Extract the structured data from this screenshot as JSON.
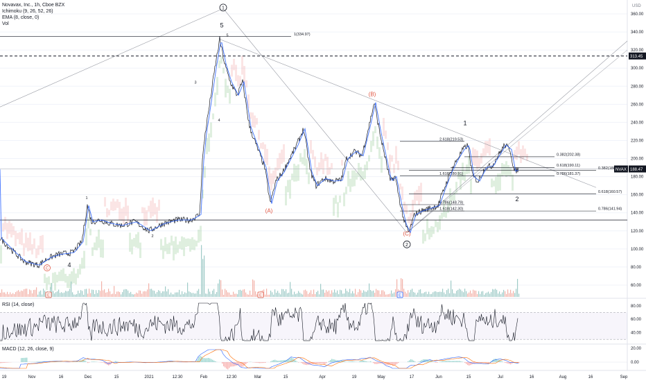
{
  "header": {
    "symbol": "Novavax, Inc., 1h, Cboe BZX",
    "indicators": [
      "Ichimoku (9, 26, 52, 26)",
      "EMA (8, close, 0)",
      "Vol"
    ],
    "currency": "USD",
    "symbol_badge": "NVAX",
    "last_price": "188.47",
    "level_price": "313.45"
  },
  "panes": {
    "rsi_label": "RSI (14, close)",
    "macd_label": "MACD (12, 26, close, 9)"
  },
  "colors": {
    "price_line": "#131722",
    "ema": "#2962ff",
    "cloud_bull": "#8bc48b",
    "cloud_bear": "#f2a0a0",
    "volume_up": "#9ecbc7",
    "volume_down": "#f3b1a8",
    "wave_red": "#e0533f",
    "trend_gray": "#9598a1"
  },
  "chart_data": {
    "type": "line",
    "x_axis_ticks": [
      "19",
      "Nov",
      "16",
      "Dec",
      "15",
      "2021",
      "12:30",
      "Feb",
      "12:30",
      "Mar",
      "15",
      "Apr",
      "19",
      "May",
      "17",
      "Jun",
      "15",
      "Jul",
      "16",
      "Aug",
      "16",
      "Sep"
    ],
    "y_axis_ticks": [
      "360.00",
      "340.00",
      "320.00",
      "300.00",
      "280.00",
      "260.00",
      "240.00",
      "220.00",
      "200.00",
      "180.00",
      "160.00",
      "140.00",
      "120.00",
      "100.00",
      "80.00",
      "60.00"
    ],
    "ylim": [
      50,
      370
    ],
    "rsi_ticks": [
      "80.00",
      "60.00",
      "40.00"
    ],
    "rsi_range": [
      30,
      70
    ],
    "macd_ticks": [
      "20.00",
      "0.00"
    ],
    "price_anchors": [
      {
        "x": 0,
        "y": 112
      },
      {
        "x": 18,
        "y": 98
      },
      {
        "x": 35,
        "y": 86
      },
      {
        "x": 55,
        "y": 82
      },
      {
        "x": 70,
        "y": 90
      },
      {
        "x": 85,
        "y": 94
      },
      {
        "x": 105,
        "y": 96
      },
      {
        "x": 118,
        "y": 108
      },
      {
        "x": 126,
        "y": 148
      },
      {
        "x": 132,
        "y": 130
      },
      {
        "x": 145,
        "y": 132
      },
      {
        "x": 160,
        "y": 128
      },
      {
        "x": 175,
        "y": 126
      },
      {
        "x": 195,
        "y": 130
      },
      {
        "x": 215,
        "y": 120
      },
      {
        "x": 235,
        "y": 128
      },
      {
        "x": 255,
        "y": 132
      },
      {
        "x": 275,
        "y": 132
      },
      {
        "x": 288,
        "y": 138
      },
      {
        "x": 292,
        "y": 198
      },
      {
        "x": 296,
        "y": 228
      },
      {
        "x": 302,
        "y": 258
      },
      {
        "x": 310,
        "y": 300
      },
      {
        "x": 317,
        "y": 332
      },
      {
        "x": 324,
        "y": 305
      },
      {
        "x": 332,
        "y": 285
      },
      {
        "x": 342,
        "y": 270
      },
      {
        "x": 350,
        "y": 285
      },
      {
        "x": 360,
        "y": 235
      },
      {
        "x": 372,
        "y": 210
      },
      {
        "x": 382,
        "y": 190
      },
      {
        "x": 390,
        "y": 150
      },
      {
        "x": 398,
        "y": 175
      },
      {
        "x": 408,
        "y": 185
      },
      {
        "x": 418,
        "y": 200
      },
      {
        "x": 428,
        "y": 215
      },
      {
        "x": 438,
        "y": 233
      },
      {
        "x": 448,
        "y": 185
      },
      {
        "x": 456,
        "y": 170
      },
      {
        "x": 468,
        "y": 178
      },
      {
        "x": 480,
        "y": 175
      },
      {
        "x": 492,
        "y": 176
      },
      {
        "x": 500,
        "y": 200
      },
      {
        "x": 512,
        "y": 208
      },
      {
        "x": 522,
        "y": 203
      },
      {
        "x": 532,
        "y": 235
      },
      {
        "x": 540,
        "y": 262
      },
      {
        "x": 548,
        "y": 228
      },
      {
        "x": 556,
        "y": 200
      },
      {
        "x": 563,
        "y": 175
      },
      {
        "x": 570,
        "y": 180
      },
      {
        "x": 578,
        "y": 148
      },
      {
        "x": 584,
        "y": 128
      },
      {
        "x": 590,
        "y": 118
      },
      {
        "x": 598,
        "y": 138
      },
      {
        "x": 608,
        "y": 142
      },
      {
        "x": 620,
        "y": 145
      },
      {
        "x": 632,
        "y": 148
      },
      {
        "x": 640,
        "y": 165
      },
      {
        "x": 650,
        "y": 185
      },
      {
        "x": 660,
        "y": 200
      },
      {
        "x": 668,
        "y": 210
      },
      {
        "x": 675,
        "y": 215
      },
      {
        "x": 682,
        "y": 180
      },
      {
        "x": 690,
        "y": 175
      },
      {
        "x": 700,
        "y": 190
      },
      {
        "x": 710,
        "y": 192
      },
      {
        "x": 720,
        "y": 205
      },
      {
        "x": 728,
        "y": 215
      },
      {
        "x": 736,
        "y": 210
      },
      {
        "x": 742,
        "y": 186
      },
      {
        "x": 748,
        "y": 188
      }
    ],
    "annotations": [
      {
        "text": "1",
        "x": 322,
        "y": 367,
        "style": "circle"
      },
      {
        "text": "2",
        "x": 587,
        "y": 105,
        "style": "circle"
      },
      {
        "text": "5",
        "x": 320,
        "y": 345,
        "style": "plain"
      },
      {
        "text": "1",
        "x": 125,
        "y": 155,
        "style": "small"
      },
      {
        "text": "2",
        "x": 220,
        "y": 113,
        "style": "small"
      },
      {
        "text": "3",
        "x": 282,
        "y": 283,
        "style": "small"
      },
      {
        "text": "4",
        "x": 316,
        "y": 241,
        "style": "small"
      },
      {
        "text": "5",
        "x": 328,
        "y": 335,
        "style": "small"
      },
      {
        "text": "4",
        "x": 100,
        "y": 80,
        "style": "plain"
      },
      {
        "text": "C",
        "x": 68,
        "y": 79,
        "style": "red-circle"
      },
      {
        "text": "(A)",
        "x": 388,
        "y": 140,
        "style": "red"
      },
      {
        "text": "(B)",
        "x": 537,
        "y": 269,
        "style": "red"
      },
      {
        "text": "(C)",
        "x": 587,
        "y": 115,
        "style": "red"
      },
      {
        "text": "1",
        "x": 671,
        "y": 237,
        "style": "plain"
      },
      {
        "text": "2",
        "x": 746,
        "y": 153,
        "style": "plain"
      }
    ],
    "fib_levels": [
      {
        "label": "1(334.97)",
        "x0": 0,
        "x1": 420,
        "y": 335
      },
      {
        "label": "2.618(219.53)",
        "x0": 577,
        "x1": 670,
        "y": 219
      },
      {
        "label": "0.382(202.38)",
        "x0": 670,
        "x1": 800,
        "y": 202
      },
      {
        "label": "0.618(190.11)",
        "x0": 650,
        "x1": 800,
        "y": 190
      },
      {
        "label": "0.382(186.74)",
        "x0": 590,
        "x1": 860,
        "y": 187
      },
      {
        "label": "0.786(181.37)",
        "x0": 660,
        "x1": 800,
        "y": 181
      },
      {
        "label": "1.618(180.91)",
        "x0": 577,
        "x1": 670,
        "y": 181
      },
      {
        "label": "0.618(160.57)",
        "x0": 590,
        "x1": 860,
        "y": 161
      },
      {
        "label": "0.786(148.79)",
        "x0": 577,
        "x1": 670,
        "y": 149
      },
      {
        "label": "1.618(142.30)",
        "x0": 577,
        "x1": 670,
        "y": 142
      },
      {
        "label": "0.786(141.94)",
        "x0": 590,
        "x1": 860,
        "y": 142
      }
    ]
  }
}
